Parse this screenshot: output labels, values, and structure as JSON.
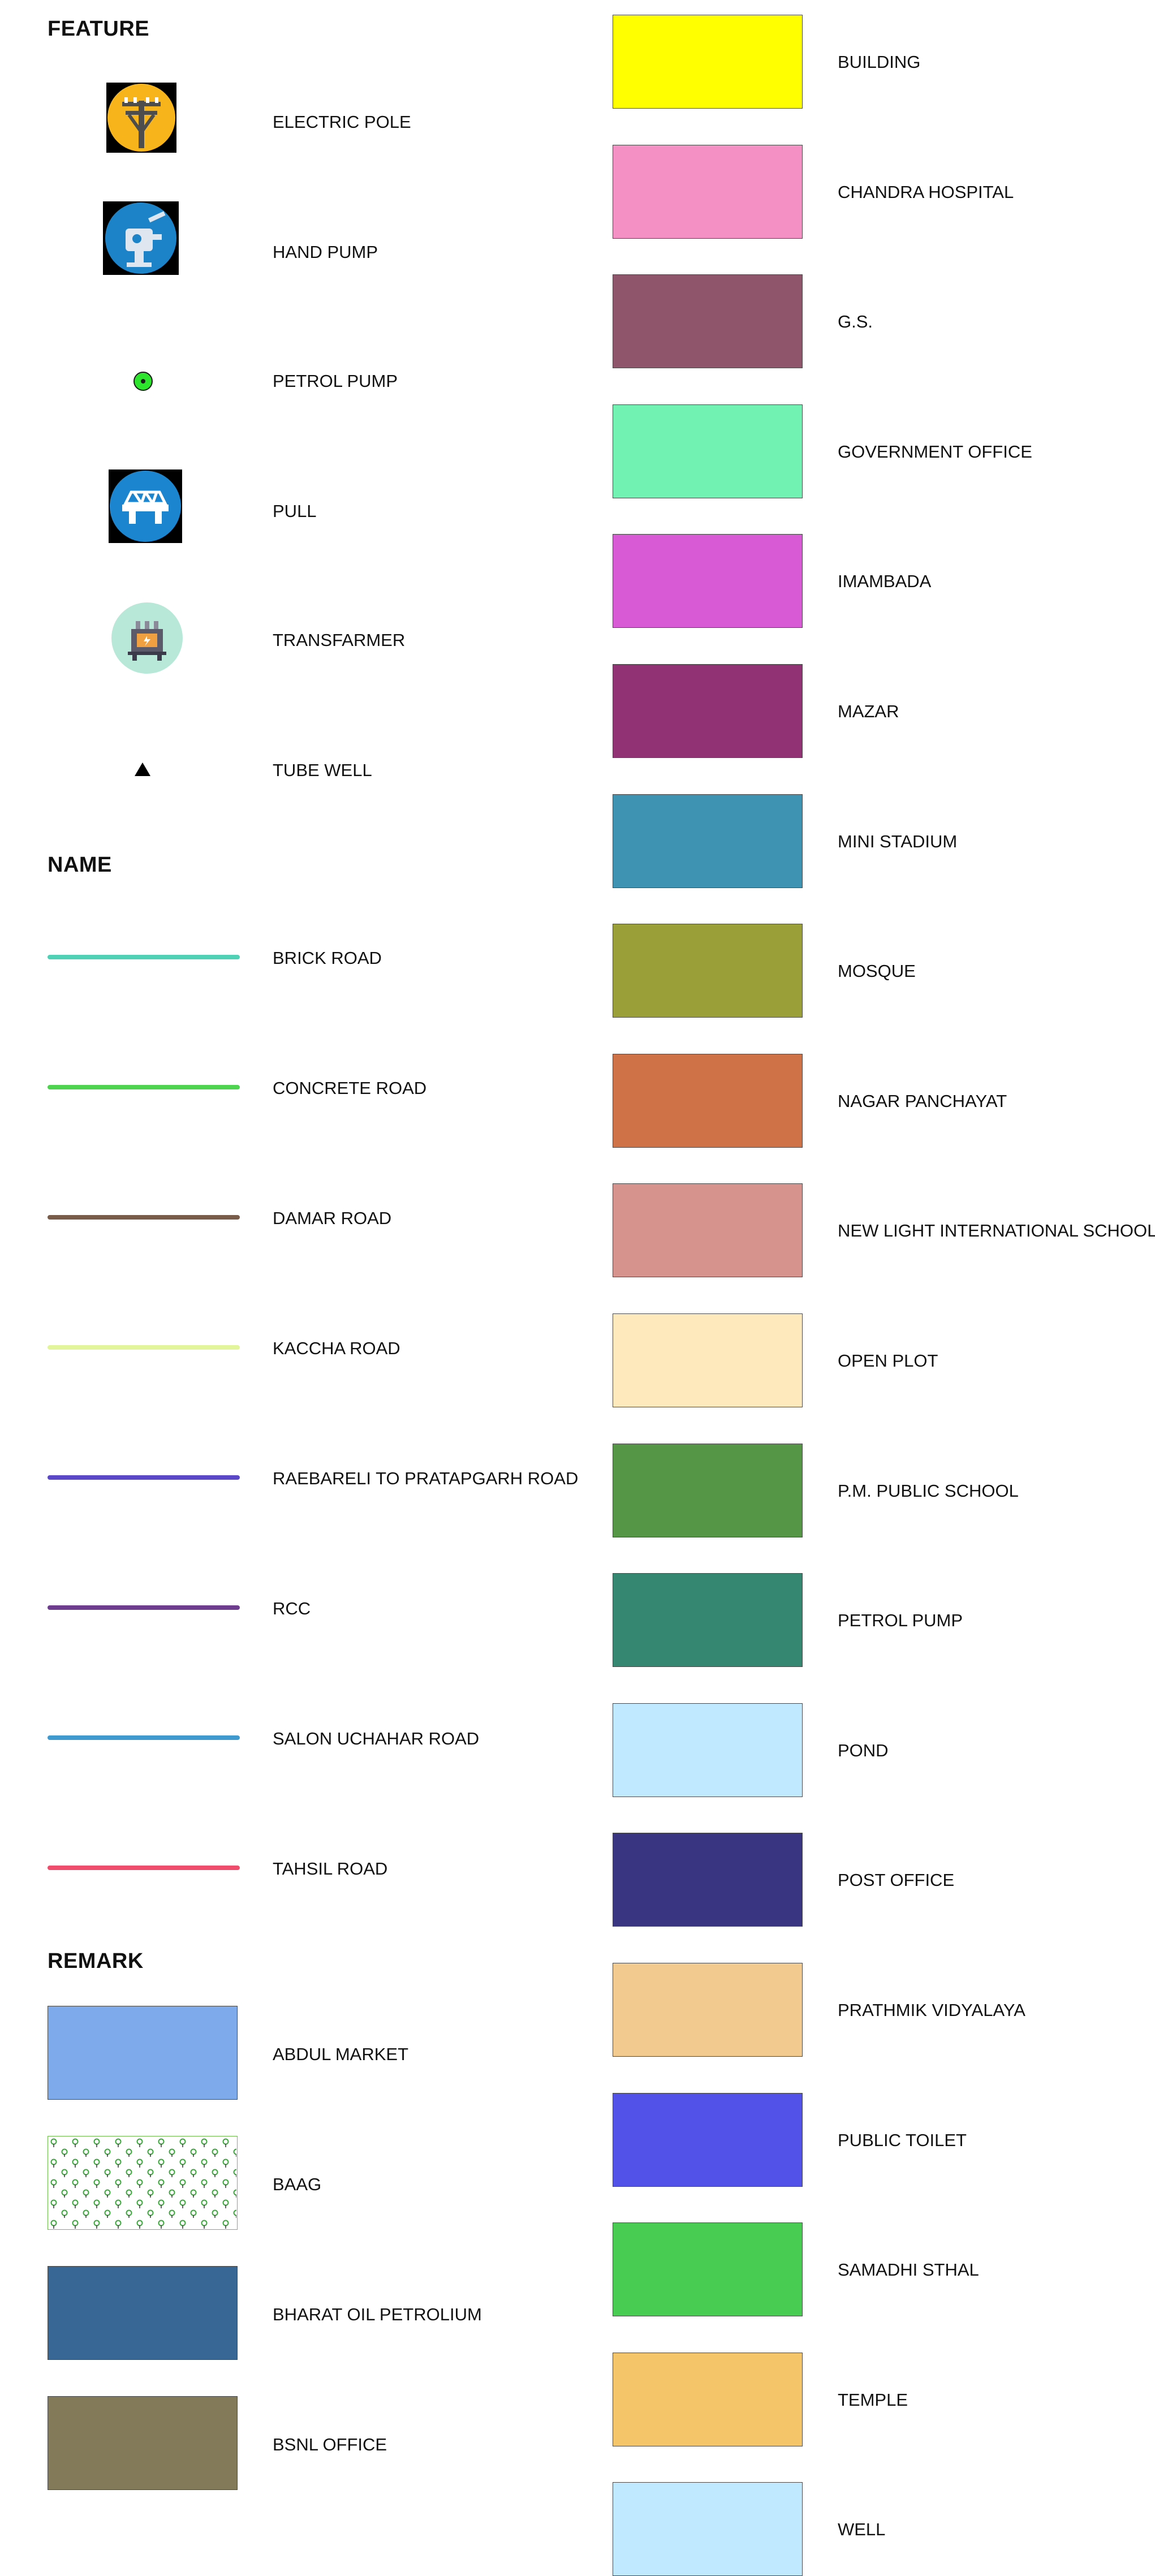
{
  "feature": {
    "title": "FEATURE",
    "items": [
      {
        "label": "ELECTRIC POLE",
        "icon": "electric-pole-icon"
      },
      {
        "label": "HAND PUMP",
        "icon": "hand-pump-icon"
      },
      {
        "label": "PETROL PUMP",
        "icon": "petrol-pump-dot-icon"
      },
      {
        "label": "PULL",
        "icon": "bridge-icon"
      },
      {
        "label": "TRANSFARMER",
        "icon": "transformer-icon"
      },
      {
        "label": "TUBE WELL",
        "icon": "triangle-icon"
      }
    ]
  },
  "name": {
    "title": "NAME",
    "items": [
      {
        "label": "BRICK ROAD",
        "color": "#4fd1b5"
      },
      {
        "label": "CONCRETE ROAD",
        "color": "#4fd44f"
      },
      {
        "label": "DAMAR ROAD",
        "color": "#7a5c4a"
      },
      {
        "label": "KACCHA ROAD",
        "color": "#e3f59a"
      },
      {
        "label": "RAEBARELI TO PRATAPGARH ROAD",
        "color": "#5a48c8"
      },
      {
        "label": "RCC",
        "color": "#6f3d8f"
      },
      {
        "label": "SALON UCHAHAR ROAD",
        "color": "#3f9ad0"
      },
      {
        "label": "TAHSIL ROAD",
        "color": "#ef4d6b"
      }
    ]
  },
  "remark": {
    "title": "REMARK",
    "items": [
      {
        "label": "ABDUL MARKET",
        "color": "#7ea9ea"
      },
      {
        "label": "BAAG",
        "color": "pattern"
      },
      {
        "label": "BHARAT OIL PETROLIUM",
        "color": "#386796"
      },
      {
        "label": "BSNL OFFICE",
        "color": "#827a58"
      }
    ],
    "items_right": [
      {
        "label": "BUILDING",
        "color": "#ffff00"
      },
      {
        "label": "CHANDRA HOSPITAL",
        "color": "#f590c5"
      },
      {
        "label": "G.S.",
        "color": "#8f566b"
      },
      {
        "label": "GOVERNMENT OFFICE",
        "color": "#72f2b2"
      },
      {
        "label": "IMAMBADA",
        "color": "#d85ad5"
      },
      {
        "label": "MAZAR",
        "color": "#903273"
      },
      {
        "label": "MINI STADIUM",
        "color": "#3e92b2"
      },
      {
        "label": "MOSQUE",
        "color": "#9b9f38"
      },
      {
        "label": "NAGAR PANCHAYAT",
        "color": "#d07248"
      },
      {
        "label": "NEW LIGHT INTERNATIONAL SCHOOL",
        "color": "#d6938d"
      },
      {
        "label": "OPEN PLOT",
        "color": "#fee9bd"
      },
      {
        "label": "P.M. PUBLIC SCHOOL",
        "color": "#549546"
      },
      {
        "label": "PETROL PUMP",
        "color": "#358771"
      },
      {
        "label": "POND",
        "color": "#c0e8ff"
      },
      {
        "label": "POST OFFICE",
        "color": "#393580"
      },
      {
        "label": "PRATHMIK VIDYALAYA",
        "color": "#f2c98f"
      },
      {
        "label": "PUBLIC TOILET",
        "color": "#5352e8"
      },
      {
        "label": "SAMADHI STHAL",
        "color": "#48cc52"
      },
      {
        "label": "TEMPLE",
        "color": "#f5c56a"
      },
      {
        "label": "WELL",
        "color": "#c0e8ff"
      }
    ]
  }
}
